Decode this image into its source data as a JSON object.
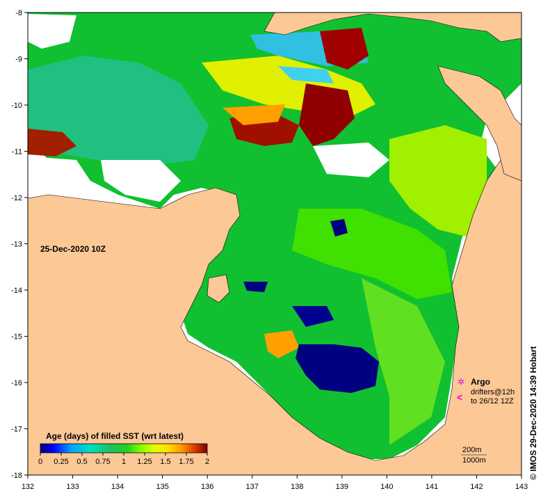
{
  "map": {
    "date_label": "25-Dec-2020 10Z",
    "credit": "© IMOS 29-Dec-2020 14:39 Hobart",
    "colors": {
      "land": "#fbc896",
      "ocean_background": "#ffffff"
    },
    "lon_ticks": [
      "132",
      "133",
      "134",
      "135",
      "136",
      "137",
      "138",
      "139",
      "140",
      "141",
      "142",
      "143"
    ],
    "lat_ticks": [
      "-8",
      "-9",
      "-10",
      "-11",
      "-12",
      "-13",
      "-14",
      "-15",
      "-16",
      "-17",
      "-18"
    ],
    "colorbar": {
      "title": "Age (days) of filled SST (wrt latest)",
      "tick_labels": [
        "0",
        "0.25",
        "0.5",
        "0.75",
        "1",
        "1.25",
        "1.5",
        "1.75",
        "2"
      ],
      "colors": [
        "#000080",
        "#0000ff",
        "#00a0ff",
        "#00e0c0",
        "#20c060",
        "#10c010",
        "#30e000",
        "#80ff00",
        "#e0ff00",
        "#ffe000",
        "#ffa000",
        "#ff6000",
        "#c02000",
        "#800000"
      ]
    },
    "legend": {
      "argo_label": "Argo",
      "drifters_label": "drifters@12h",
      "drifters_period": "to 26/12 12Z",
      "argo_symbol": "✲",
      "drifter_symbol": "<"
    },
    "contours": {
      "label_200": "200m",
      "label_1000": "1000m"
    }
  }
}
